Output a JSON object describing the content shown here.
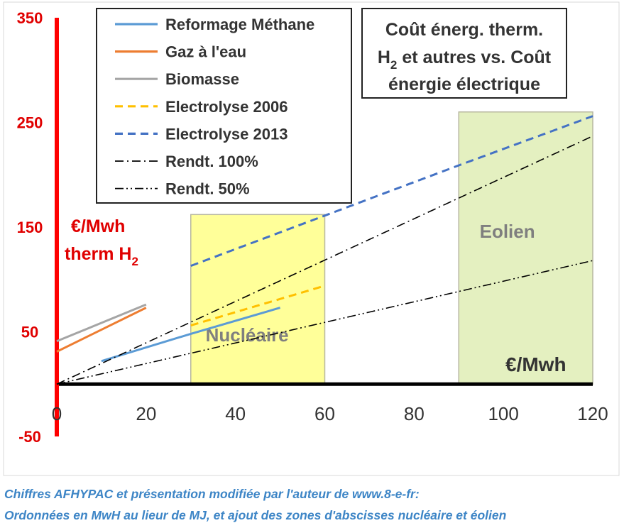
{
  "chart_data": {
    "type": "line",
    "xlim": [
      0,
      120
    ],
    "ylim": [
      -50,
      350
    ],
    "x_ticks": [
      "0",
      "20",
      "40",
      "60",
      "80",
      "100",
      "120"
    ],
    "y_ticks": [
      "350",
      "250",
      "150",
      "50",
      "-50"
    ],
    "y_tick_values": [
      350,
      250,
      150,
      50,
      -50
    ],
    "x_tick_values": [
      0,
      20,
      40,
      60,
      80,
      100,
      120
    ],
    "ylabel_line1": "€/Mwh",
    "ylabel_line2_main": "therm H",
    "ylabel_line2_sub": "2",
    "xlabel": "€/Mwh",
    "title_line1": "Coût énerg. therm.",
    "title_line2_a": "H",
    "title_line2_sub": "2",
    "title_line2_b": " et autres vs. Coût",
    "title_line3": "énergie électrique",
    "grid": false,
    "legend_position": "top-left",
    "zones": [
      {
        "name": "Nucléaire",
        "x": [
          30,
          60
        ],
        "y": [
          0,
          162
        ],
        "color": "#ffff99"
      },
      {
        "name": "Eolien",
        "x": [
          90,
          120
        ],
        "y": [
          0,
          260
        ],
        "color": "#e4f0c0"
      }
    ],
    "series": [
      {
        "name": "Reformage Méthane",
        "color": "#5b9bd5",
        "style": "solid",
        "points": [
          [
            10,
            22
          ],
          [
            30,
            48
          ],
          [
            50,
            73
          ]
        ]
      },
      {
        "name": "Gaz à l'eau",
        "color": "#ed7d31",
        "style": "solid",
        "points": [
          [
            0,
            31
          ],
          [
            20,
            73
          ]
        ]
      },
      {
        "name": "Biomasse",
        "color": "#a5a5a5",
        "style": "solid",
        "points": [
          [
            0,
            41
          ],
          [
            20,
            76
          ]
        ]
      },
      {
        "name": "Electrolyse 2006",
        "color": "#ffc000",
        "style": "dashed",
        "points": [
          [
            30,
            56
          ],
          [
            60,
            94
          ]
        ]
      },
      {
        "name": "Electrolyse 2013",
        "color": "#4472c4",
        "style": "dashed",
        "points": [
          [
            30,
            113
          ],
          [
            60,
            161
          ],
          [
            90,
            209
          ],
          [
            120,
            256
          ]
        ]
      },
      {
        "name": "Rendt. 100%",
        "color": "#000000",
        "style": "dashdot",
        "points": [
          [
            0,
            0
          ],
          [
            120,
            237
          ]
        ]
      },
      {
        "name": "Rendt. 50%",
        "color": "#000000",
        "style": "dashdotdot",
        "points": [
          [
            0,
            0
          ],
          [
            120,
            118
          ]
        ]
      }
    ]
  },
  "caption": {
    "line1": "Chiffres AFHYPAC et présentation modifiée par l'auteur de www.8-e-fr:",
    "line2": "Ordonnées en MwH au lieur de MJ, et ajout des zones d'abscisses nucléaire et éolien"
  }
}
